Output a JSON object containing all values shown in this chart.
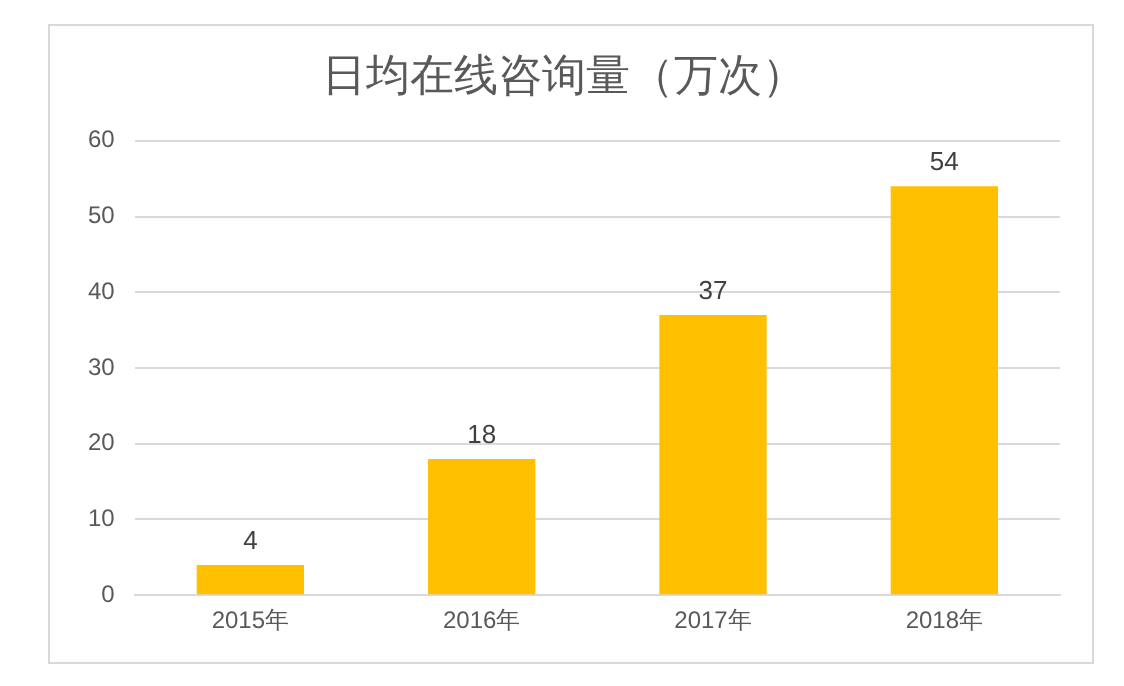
{
  "chart_data": {
    "type": "bar",
    "title": "日均在线咨询量（万次）",
    "categories": [
      "2015年",
      "2016年",
      "2017年",
      "2018年"
    ],
    "values": [
      4,
      18,
      37,
      54
    ],
    "color": "#ffc000",
    "ylim": [
      0,
      60
    ],
    "yticks": [
      0,
      10,
      20,
      30,
      40,
      50,
      60
    ],
    "grid": "y",
    "data_labels": true
  }
}
